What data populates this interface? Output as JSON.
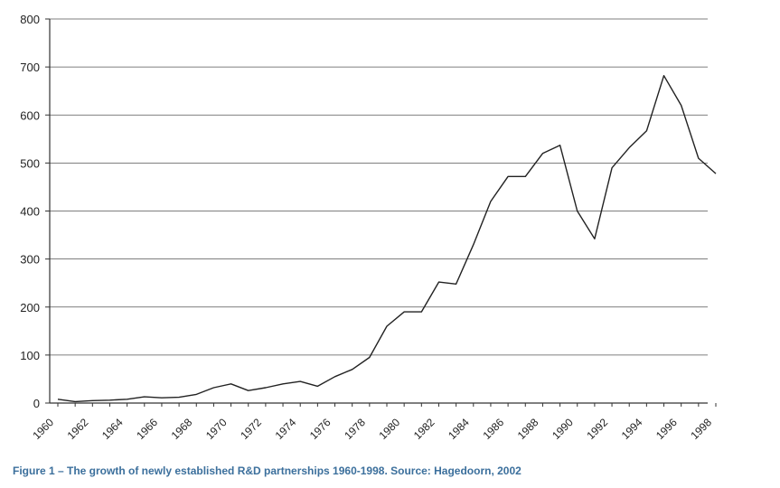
{
  "caption": "Figure 1 – The growth of newly established R&D partnerships 1960-1998. Source: Hagedoorn, 2002",
  "chart_data": {
    "type": "line",
    "title": "",
    "xlabel": "",
    "ylabel": "",
    "xlim": [
      1960,
      1998
    ],
    "ylim": [
      0,
      800
    ],
    "yticks": [
      0,
      100,
      200,
      300,
      400,
      500,
      600,
      700,
      800
    ],
    "xticks": [
      1960,
      1962,
      1964,
      1966,
      1968,
      1970,
      1972,
      1974,
      1976,
      1978,
      1980,
      1982,
      1984,
      1986,
      1988,
      1990,
      1992,
      1994,
      1996,
      1998
    ],
    "grid": "horizontal",
    "line_color": "#222222",
    "x": [
      1960,
      1961,
      1962,
      1963,
      1964,
      1965,
      1966,
      1967,
      1968,
      1969,
      1970,
      1971,
      1972,
      1973,
      1974,
      1975,
      1976,
      1977,
      1978,
      1979,
      1980,
      1981,
      1982,
      1983,
      1984,
      1985,
      1986,
      1987,
      1988,
      1989,
      1990,
      1991,
      1992,
      1993,
      1994,
      1995,
      1996,
      1997,
      1998
    ],
    "values": [
      8,
      3,
      5,
      6,
      8,
      13,
      11,
      12,
      18,
      32,
      40,
      26,
      32,
      40,
      45,
      35,
      55,
      70,
      95,
      160,
      190,
      190,
      252,
      248,
      330,
      420,
      472,
      472,
      520,
      537,
      400,
      342,
      490,
      532,
      567,
      682,
      620,
      510,
      478
    ]
  }
}
